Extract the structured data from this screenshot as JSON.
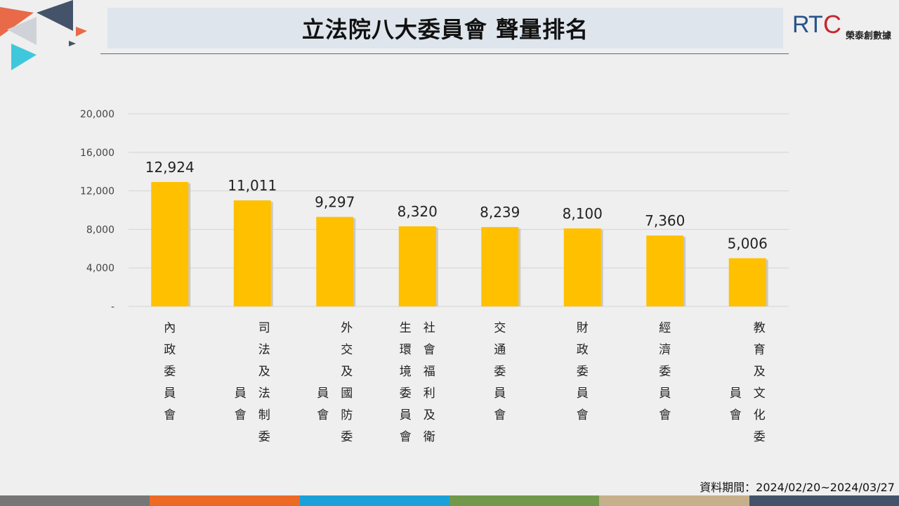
{
  "title": "立法院八大委員會  聲量排名",
  "logo": {
    "mark_rt": "RT",
    "mark_c": "C",
    "company": "榮泰創數據"
  },
  "source_note": "資料期間：2024/02/20~2024/03/27",
  "colors": {
    "bar": "#ffc000",
    "grid": "#d4d4d4",
    "footer": [
      "#767676",
      "#ed6a25",
      "#1aa2d8",
      "#72984b",
      "#c6b08c",
      "#44536a"
    ],
    "deco": [
      "#e86a48",
      "#44536a",
      "#3fc8dc"
    ]
  },
  "chart_data": {
    "type": "bar",
    "categories": [
      "內政委員會",
      "司法及法制委員會",
      "外交及國防委員會",
      "社會福利及衛生環境委員會",
      "交通委員會",
      "財政委員會",
      "經濟委員會",
      "教育及文化委員會"
    ],
    "values": [
      12924,
      11011,
      9297,
      8320,
      8239,
      8100,
      7360,
      5006
    ],
    "value_labels": [
      "12,924",
      "11,011",
      "9,297",
      "8,320",
      "8,239",
      "8,100",
      "7,360",
      "5,006"
    ],
    "axis_columns": [
      [
        [
          "內",
          "政",
          "委",
          "員",
          "會"
        ]
      ],
      [
        [
          "員",
          "會"
        ],
        [
          "司",
          "法",
          "及",
          "法",
          "制",
          "委"
        ]
      ],
      [
        [
          "員",
          "會"
        ],
        [
          "外",
          "交",
          "及",
          "國",
          "防",
          "委"
        ]
      ],
      [
        [
          "生",
          "環",
          "境",
          "委",
          "員",
          "會"
        ],
        [
          "社",
          "會",
          "福",
          "利",
          "及",
          "衛"
        ]
      ],
      [
        [
          "交",
          "通",
          "委",
          "員",
          "會"
        ]
      ],
      [
        [
          "財",
          "政",
          "委",
          "員",
          "會"
        ]
      ],
      [
        [
          "經",
          "濟",
          "委",
          "員",
          "會"
        ]
      ],
      [
        [
          "員",
          "會"
        ],
        [
          "教",
          "育",
          "及",
          "文",
          "化",
          "委"
        ]
      ]
    ],
    "yticks": [
      0,
      4000,
      8000,
      12000,
      16000,
      20000
    ],
    "ytick_labels": [
      "-",
      "4,000",
      "8,000",
      "12,000",
      "16,000",
      "20,000"
    ],
    "ylim": [
      0,
      20000
    ],
    "grid": true,
    "legend": "none"
  }
}
